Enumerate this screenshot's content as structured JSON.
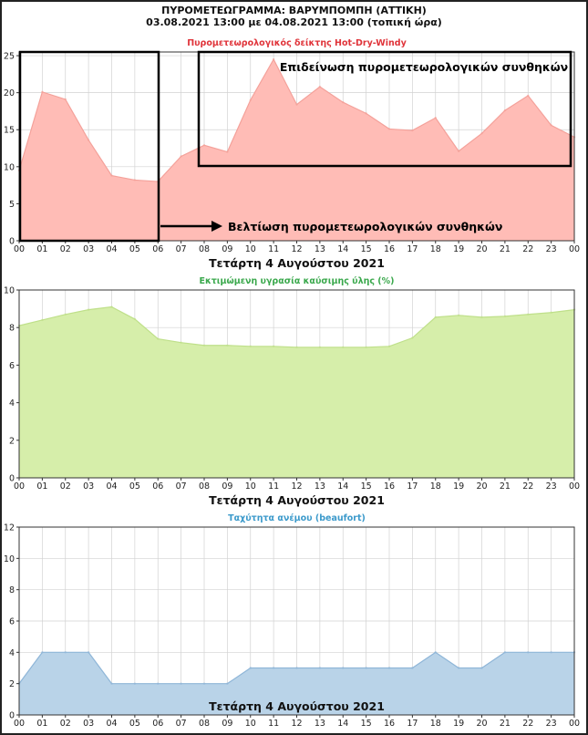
{
  "header": {
    "title": "ΠΥΡΟΜΕΤΕΩΓΡΑΜΜΑ: ΒΑΡΥΜΠΟΜΠΗ (ΑΤΤΙΚΗ)",
    "subtitle": "03.08.2021 13:00 με 04.08.2021 13:00 (τοπική ώρα)"
  },
  "colors": {
    "hdw_fill": "#ffbcb6",
    "hdw_line": "#f4a19a",
    "hdw_title": "#e0343a",
    "moist_fill": "#d6eeaa",
    "moist_line": "#bfe08a",
    "moist_title": "#3aa84c",
    "wind_fill": "#b9d3e8",
    "wind_line": "#8fb6d8",
    "wind_title": "#3c9acb"
  },
  "annotations": {
    "worsening": "Επιδείνωση πυρομετεωρολογικών συνθηκών",
    "improvement": "Βελτίωση πυρομετεωρολογικών συνθηκών"
  },
  "chart_data": [
    {
      "id": "hdw",
      "type": "area",
      "title": "Πυρομετεωρολογικός δείκτης Hot-Dry-Windy",
      "xlabel": "Τετάρτη 4 Αυγούστου 2021",
      "categories": [
        "00",
        "01",
        "02",
        "03",
        "04",
        "05",
        "06",
        "07",
        "08",
        "09",
        "10",
        "11",
        "12",
        "13",
        "14",
        "15",
        "16",
        "17",
        "18",
        "19",
        "20",
        "21",
        "22",
        "23",
        "00"
      ],
      "x": [
        0,
        1,
        2,
        3,
        4,
        5,
        6,
        7,
        8,
        9,
        10,
        11,
        12,
        13,
        14,
        15,
        16,
        17,
        18,
        19,
        20,
        21,
        22,
        23,
        24
      ],
      "values": [
        9.5,
        20.1,
        19.1,
        13.6,
        8.8,
        8.2,
        8.0,
        11.4,
        12.9,
        12.0,
        19.0,
        24.5,
        18.4,
        20.8,
        18.7,
        17.2,
        15.1,
        14.9,
        16.6,
        12.1,
        14.5,
        17.6,
        19.6,
        15.6,
        14.0
      ],
      "ylim": [
        0,
        25.5
      ],
      "yticks": [
        0,
        5,
        10,
        15,
        20,
        25
      ],
      "grid": true
    },
    {
      "id": "moisture",
      "type": "area",
      "title": "Εκτιμώμενη υγρασία καύσιμης ύλης (%)",
      "xlabel": "Τετάρτη 4 Αυγούστου 2021",
      "categories": [
        "00",
        "01",
        "02",
        "03",
        "04",
        "05",
        "06",
        "07",
        "08",
        "09",
        "10",
        "11",
        "12",
        "13",
        "14",
        "15",
        "16",
        "17",
        "18",
        "19",
        "20",
        "21",
        "22",
        "23",
        "00"
      ],
      "x": [
        0,
        1,
        2,
        3,
        4,
        5,
        6,
        7,
        8,
        9,
        10,
        11,
        12,
        13,
        14,
        15,
        16,
        17,
        18,
        19,
        20,
        21,
        22,
        23,
        24
      ],
      "values": [
        8.1,
        8.4,
        8.7,
        8.95,
        9.1,
        8.45,
        7.4,
        7.2,
        7.05,
        7.05,
        7.0,
        7.0,
        6.95,
        6.95,
        6.95,
        6.95,
        7.0,
        7.45,
        8.55,
        8.65,
        8.55,
        8.6,
        8.7,
        8.8,
        8.95
      ],
      "ylim": [
        0,
        10
      ],
      "yticks": [
        0,
        2,
        4,
        6,
        8,
        10
      ],
      "grid": true
    },
    {
      "id": "wind",
      "type": "area",
      "title": "Ταχύτητα ανέμου (beaufort)",
      "xlabel": "Τετάρτη 4 Αυγούστου 2021",
      "categories": [
        "00",
        "01",
        "02",
        "03",
        "04",
        "05",
        "06",
        "07",
        "08",
        "09",
        "10",
        "11",
        "12",
        "13",
        "14",
        "15",
        "16",
        "17",
        "18",
        "19",
        "20",
        "21",
        "22",
        "23",
        "00"
      ],
      "x": [
        0,
        1,
        2,
        3,
        4,
        5,
        6,
        7,
        8,
        9,
        10,
        11,
        12,
        13,
        14,
        15,
        16,
        17,
        18,
        19,
        20,
        21,
        22,
        23,
        24
      ],
      "values": [
        2,
        4,
        4,
        4,
        2,
        2,
        2,
        2,
        2,
        2,
        3,
        3,
        3,
        3,
        3,
        3,
        3,
        3,
        4,
        3,
        3,
        4,
        4,
        4,
        4
      ],
      "ylim": [
        0,
        12
      ],
      "yticks": [
        0,
        2,
        4,
        6,
        8,
        10,
        12
      ],
      "grid": true
    }
  ]
}
